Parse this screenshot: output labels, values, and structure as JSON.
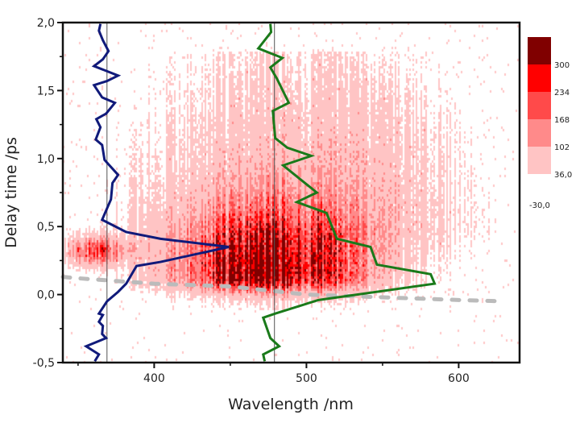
{
  "chart_data": {
    "type": "heatmap",
    "xlabel": "Wavelength /nm",
    "ylabel": "Delay time /ps",
    "xlim": [
      340,
      640
    ],
    "ylim": [
      -0.5,
      2.0
    ],
    "x_ticks": [
      400,
      500,
      600
    ],
    "x_tick_labels": [
      "400",
      "500",
      "600"
    ],
    "y_ticks": [
      -0.5,
      0.0,
      0.5,
      1.0,
      1.5,
      2.0
    ],
    "y_tick_labels": [
      "-0,5",
      "0,0",
      "0,5",
      "1,0",
      "1,5",
      "2,0"
    ],
    "grid": false,
    "colorbar": {
      "placement": "right",
      "levels": [
        -30,
        36,
        102,
        168,
        234,
        300
      ],
      "labels": [
        "-30,0",
        "36,0",
        "102",
        "168",
        "234",
        "300"
      ],
      "colors": [
        "#ffc4c4",
        "#ff8a8a",
        "#ff4a4a",
        "#ff0000",
        "#800000"
      ]
    },
    "signal_regions": [
      {
        "center_nm": 475,
        "center_ps": 0.15,
        "width_nm": 38,
        "width_ps_up": 0.3,
        "width_ps_down": 0.08,
        "peak": 330
      },
      {
        "center_nm": 362,
        "center_ps": 0.33,
        "width_nm": 13,
        "width_ps_up": 0.07,
        "width_ps_down": 0.07,
        "peak": 190
      },
      {
        "center_nm": 500,
        "center_ps": 0.55,
        "width_nm": 70,
        "width_ps_up": 0.7,
        "width_ps_down": 0.25,
        "peak": 70
      }
    ],
    "chirp_curve": {
      "color": "#bbbbbb",
      "x": [
        340,
        350,
        400,
        450,
        500,
        550,
        600,
        630
      ],
      "y": [
        0.13,
        0.12,
        0.08,
        0.06,
        0.0,
        -0.02,
        -0.04,
        -0.05
      ]
    },
    "reference_lines_nm": [
      369,
      479
    ],
    "series": [
      {
        "color": "#101a7a",
        "x": [
          364.7,
          363.7,
          366.3,
          370,
          366.3,
          360.5,
          376.3,
          369,
          360.5,
          365.8,
          374.2,
          368.4,
          362,
          364.7,
          361.6,
          365.8,
          367.4,
          376.3,
          372.6,
          371.6,
          365.8,
          381.6,
          404.2,
          449,
          404.2,
          388.4,
          381.6,
          376.3,
          369,
          363.7,
          366.3,
          363.7,
          366.3,
          365.8,
          368.4,
          355.3,
          363.7,
          361
        ],
        "y": [
          1.99,
          1.94,
          1.87,
          1.79,
          1.73,
          1.68,
          1.61,
          1.57,
          1.54,
          1.45,
          1.41,
          1.33,
          1.29,
          1.23,
          1.14,
          1.1,
          0.99,
          0.88,
          0.82,
          0.7,
          0.55,
          0.46,
          0.41,
          0.35,
          0.24,
          0.21,
          0.08,
          0.02,
          -0.05,
          -0.14,
          -0.15,
          -0.2,
          -0.23,
          -0.29,
          -0.32,
          -0.38,
          -0.44,
          -0.49
        ]
      },
      {
        "color": "#1a7a1a",
        "x": [
          476.3,
          476.8,
          468.4,
          484.2,
          476.3,
          480.5,
          488.4,
          477.9,
          479.5,
          487.4,
          503.2,
          484.7,
          506.8,
          493.7,
          513.2,
          520,
          542.1,
          546.3,
          581.6,
          584.2,
          507.9,
          479.5,
          471.6,
          476.3,
          482.1,
          471.6,
          472.6
        ],
        "y": [
          1.99,
          1.93,
          1.81,
          1.74,
          1.67,
          1.59,
          1.41,
          1.35,
          1.15,
          1.08,
          1.02,
          0.95,
          0.75,
          0.68,
          0.6,
          0.41,
          0.35,
          0.22,
          0.15,
          0.08,
          -0.04,
          -0.14,
          -0.17,
          -0.32,
          -0.38,
          -0.44,
          -0.49
        ]
      }
    ]
  }
}
